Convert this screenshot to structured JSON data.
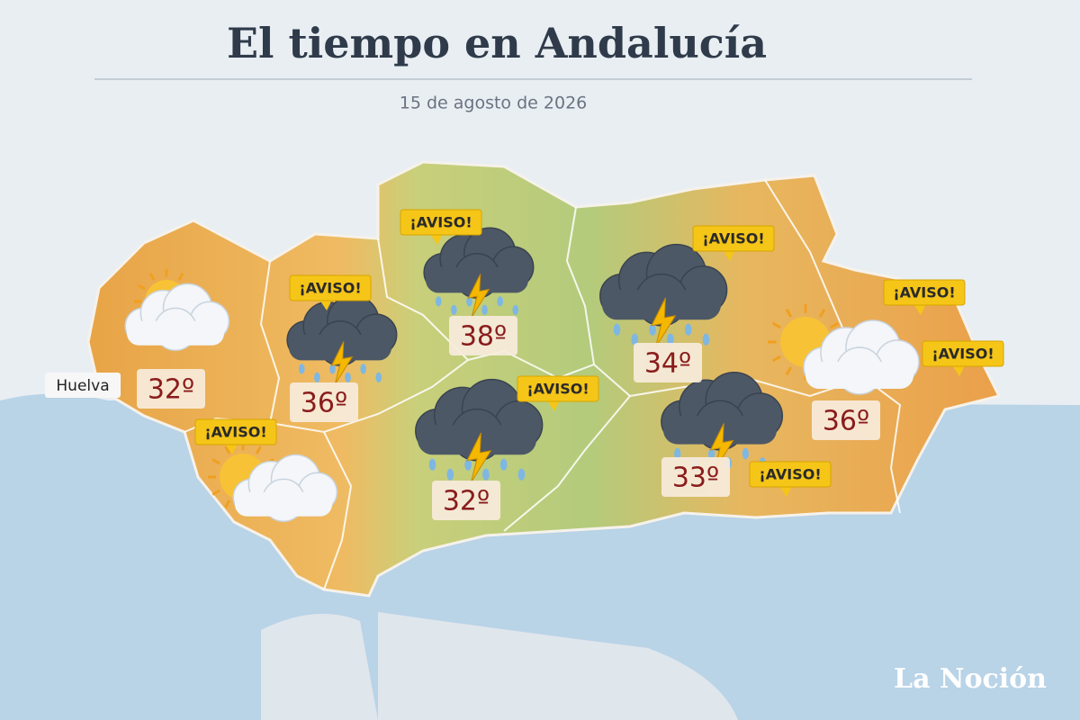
{
  "header": {
    "title": "El tiempo en Andalucía",
    "date": "15 de agosto de 2026"
  },
  "map": {
    "city": "Huelva",
    "temperatures": [
      "32º",
      "36º",
      "38º",
      "34º",
      "33º",
      "36º",
      "32º"
    ],
    "warnings": [
      "¡AVISO!",
      "¡AVISO!",
      "¡AVISO!",
      "¡AVISO!",
      "¡AVISO!",
      "¡AVISO!",
      "¡AVISO!",
      "¡AVISO!"
    ]
  },
  "brand": "La Noción"
}
